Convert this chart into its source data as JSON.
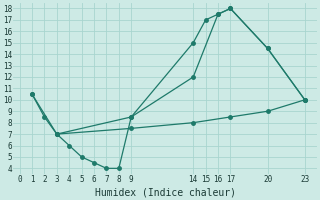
{
  "xlabel": "Humidex (Indice chaleur)",
  "bg_color": "#cdeae5",
  "grid_color": "#a8d5cf",
  "line_color": "#1e7a6a",
  "xlim": [
    -0.5,
    24
  ],
  "ylim": [
    3.5,
    18.5
  ],
  "xticks": [
    0,
    1,
    2,
    3,
    4,
    5,
    6,
    7,
    8,
    9,
    14,
    15,
    16,
    17,
    20,
    23
  ],
  "yticks": [
    4,
    5,
    6,
    7,
    8,
    9,
    10,
    11,
    12,
    13,
    14,
    15,
    16,
    17,
    18
  ],
  "line1_x": [
    1,
    2,
    3,
    4,
    5,
    6,
    7,
    8,
    9,
    14,
    15,
    16,
    17,
    20,
    23
  ],
  "line1_y": [
    10.5,
    8.5,
    7.0,
    6.0,
    5.0,
    4.5,
    4.0,
    4.0,
    8.5,
    15.0,
    17.0,
    17.5,
    18.0,
    14.5,
    10.0
  ],
  "line2_x": [
    1,
    3,
    9,
    14,
    16,
    17,
    20,
    23
  ],
  "line2_y": [
    10.5,
    7.0,
    8.5,
    12.0,
    17.5,
    18.0,
    14.5,
    10.0
  ],
  "line3_x": [
    3,
    9,
    14,
    17,
    20,
    23
  ],
  "line3_y": [
    7.0,
    7.5,
    8.0,
    8.5,
    9.0,
    10.0
  ]
}
